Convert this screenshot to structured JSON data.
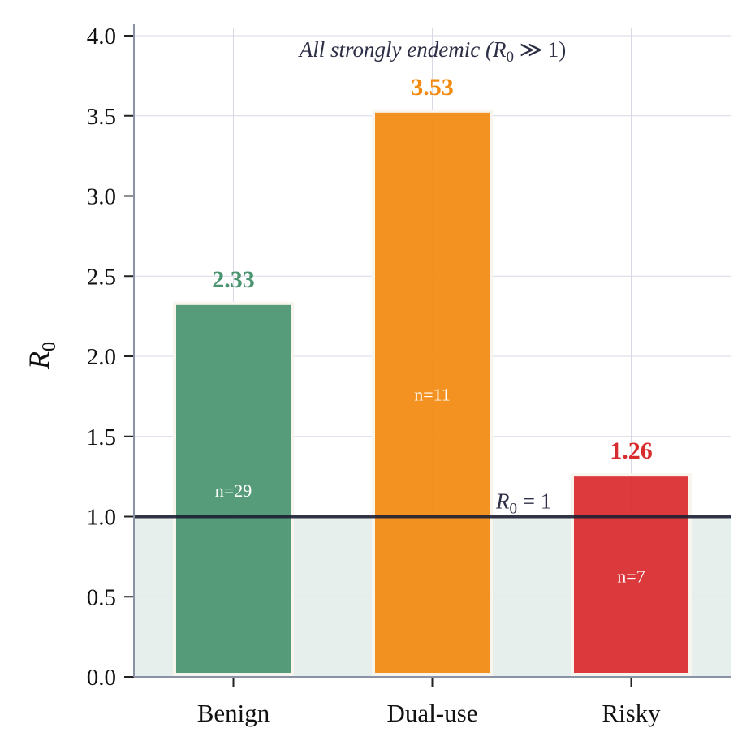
{
  "chart_data": {
    "type": "bar",
    "categories": [
      "Benign",
      "Dual-use",
      "Risky"
    ],
    "values": [
      2.33,
      3.53,
      1.26
    ],
    "value_labels": [
      "2.33",
      "3.53",
      "1.26"
    ],
    "counts": [
      "n=29",
      "n=11",
      "n=7"
    ],
    "colors": [
      "#4a9470",
      "#f28a10",
      "#d92b2e"
    ],
    "ylabel": "R0",
    "ylim": [
      0,
      4.0
    ],
    "yticks": [
      0.0,
      0.5,
      1.0,
      1.5,
      2.0,
      2.5,
      3.0,
      3.5,
      4.0
    ],
    "ytick_labels": [
      "0.0",
      "0.5",
      "1.0",
      "1.5",
      "2.0",
      "2.5",
      "3.0",
      "3.5",
      "4.0"
    ],
    "reference_line": {
      "value": 1.0,
      "label": "R0 = 1"
    },
    "annotation": "All strongly endemic (R0 ≫ 1)",
    "grid": true,
    "shade_below_reference": true
  }
}
